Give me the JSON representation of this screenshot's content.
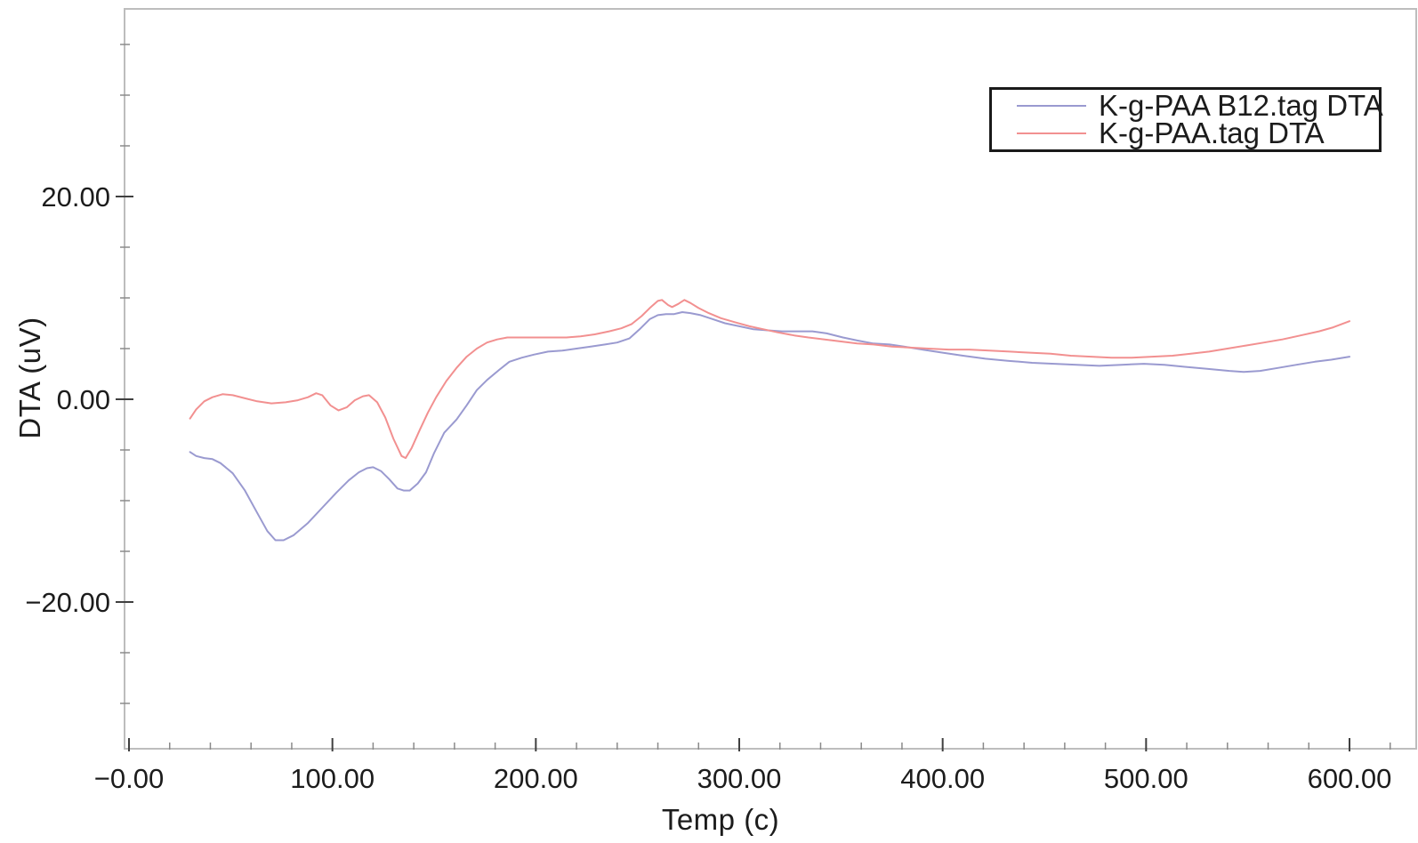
{
  "figure": {
    "background_color": "#ffffff",
    "frame_color": "#bdbdbd",
    "major_tick_color": "#3f3f3f",
    "minor_tick_color": "#8a8a8a",
    "text_color": "#1c1c1c"
  },
  "legend": {
    "items": [
      {
        "label": "K-g-PAA B12.tag DTA",
        "color": "#9a9ad0"
      },
      {
        "label": "K-g-PAA.tag DTA",
        "color": "#f29090"
      }
    ]
  },
  "chart_data": {
    "type": "line",
    "title": "",
    "xlabel": "Temp (c)",
    "ylabel": "DTA (uV)",
    "xlim": [
      -2.2,
      632.8
    ],
    "ylim": [
      -34.5,
      38.5
    ],
    "grid": false,
    "legend_position": "upper right",
    "x_axis": {
      "major_ticks": [
        {
          "value": 0,
          "label": "−0.00"
        },
        {
          "value": 100,
          "label": "100.00"
        },
        {
          "value": 200,
          "label": "200.00"
        },
        {
          "value": 300,
          "label": "300.00"
        },
        {
          "value": 400,
          "label": "400.00"
        },
        {
          "value": 500,
          "label": "500.00"
        },
        {
          "value": 600,
          "label": "600.00"
        }
      ],
      "minor_ticks": [
        20,
        40,
        60,
        80,
        120,
        140,
        160,
        180,
        220,
        240,
        260,
        280,
        320,
        340,
        360,
        380,
        420,
        440,
        460,
        480,
        520,
        540,
        560,
        580,
        620
      ]
    },
    "y_axis": {
      "major_ticks": [
        {
          "value": 20,
          "label": "20.00"
        },
        {
          "value": 0,
          "label": "0.00"
        },
        {
          "value": -20,
          "label": "−20.00"
        }
      ],
      "minor_ticks": [
        35,
        30,
        25,
        15,
        10,
        5,
        -5,
        -10,
        -15,
        -25,
        -30
      ]
    },
    "series": [
      {
        "name": "K-g-PAA B12.tag DTA",
        "color": "#9a9ad0",
        "points": [
          [
            30,
            -5.2
          ],
          [
            33,
            -5.6
          ],
          [
            37,
            -5.8
          ],
          [
            41,
            -5.9
          ],
          [
            45,
            -6.3
          ],
          [
            51,
            -7.3
          ],
          [
            57,
            -9.0
          ],
          [
            63,
            -11.2
          ],
          [
            68,
            -13.0
          ],
          [
            72,
            -13.9
          ],
          [
            76,
            -13.9
          ],
          [
            81,
            -13.4
          ],
          [
            88,
            -12.2
          ],
          [
            95,
            -10.7
          ],
          [
            102,
            -9.2
          ],
          [
            108,
            -8.0
          ],
          [
            113,
            -7.2
          ],
          [
            117,
            -6.8
          ],
          [
            120,
            -6.7
          ],
          [
            124,
            -7.1
          ],
          [
            128,
            -7.9
          ],
          [
            132,
            -8.8
          ],
          [
            135,
            -9.0
          ],
          [
            138,
            -9.0
          ],
          [
            142,
            -8.3
          ],
          [
            146,
            -7.2
          ],
          [
            150,
            -5.3
          ],
          [
            155,
            -3.3
          ],
          [
            161,
            -2.0
          ],
          [
            166,
            -0.6
          ],
          [
            171,
            0.9
          ],
          [
            176,
            1.9
          ],
          [
            182,
            2.9
          ],
          [
            187,
            3.7
          ],
          [
            193,
            4.1
          ],
          [
            199,
            4.4
          ],
          [
            206,
            4.7
          ],
          [
            213,
            4.8
          ],
          [
            220,
            5.0
          ],
          [
            227,
            5.2
          ],
          [
            234,
            5.4
          ],
          [
            240,
            5.6
          ],
          [
            246,
            6.0
          ],
          [
            251,
            6.9
          ],
          [
            256,
            7.9
          ],
          [
            260,
            8.3
          ],
          [
            264,
            8.4
          ],
          [
            268,
            8.4
          ],
          [
            272,
            8.6
          ],
          [
            276,
            8.5
          ],
          [
            281,
            8.3
          ],
          [
            287,
            7.9
          ],
          [
            293,
            7.5
          ],
          [
            300,
            7.2
          ],
          [
            307,
            6.9
          ],
          [
            314,
            6.8
          ],
          [
            321,
            6.7
          ],
          [
            328,
            6.7
          ],
          [
            336,
            6.7
          ],
          [
            343,
            6.5
          ],
          [
            351,
            6.1
          ],
          [
            358,
            5.8
          ],
          [
            366,
            5.5
          ],
          [
            374,
            5.4
          ],
          [
            381,
            5.2
          ],
          [
            390,
            4.9
          ],
          [
            400,
            4.6
          ],
          [
            410,
            4.3
          ],
          [
            421,
            4.0
          ],
          [
            432,
            3.8
          ],
          [
            444,
            3.6
          ],
          [
            455,
            3.5
          ],
          [
            466,
            3.4
          ],
          [
            477,
            3.3
          ],
          [
            488,
            3.4
          ],
          [
            499,
            3.5
          ],
          [
            509,
            3.4
          ],
          [
            519,
            3.2
          ],
          [
            530,
            3.0
          ],
          [
            541,
            2.8
          ],
          [
            548,
            2.7
          ],
          [
            556,
            2.8
          ],
          [
            565,
            3.1
          ],
          [
            574,
            3.4
          ],
          [
            583,
            3.7
          ],
          [
            591,
            3.9
          ],
          [
            600,
            4.2
          ]
        ]
      },
      {
        "name": "K-g-PAA.tag DTA",
        "color": "#f29090",
        "points": [
          [
            30,
            -1.9
          ],
          [
            33,
            -1.0
          ],
          [
            37,
            -0.2
          ],
          [
            41,
            0.2
          ],
          [
            46,
            0.5
          ],
          [
            51,
            0.4
          ],
          [
            57,
            0.1
          ],
          [
            63,
            -0.2
          ],
          [
            70,
            -0.4
          ],
          [
            77,
            -0.3
          ],
          [
            83,
            -0.1
          ],
          [
            88,
            0.2
          ],
          [
            92,
            0.6
          ],
          [
            95,
            0.4
          ],
          [
            99,
            -0.6
          ],
          [
            103,
            -1.1
          ],
          [
            107,
            -0.8
          ],
          [
            111,
            -0.1
          ],
          [
            115,
            0.3
          ],
          [
            118,
            0.4
          ],
          [
            122,
            -0.3
          ],
          [
            126,
            -1.8
          ],
          [
            130,
            -3.9
          ],
          [
            134,
            -5.6
          ],
          [
            136,
            -5.8
          ],
          [
            139,
            -4.8
          ],
          [
            143,
            -3.0
          ],
          [
            147,
            -1.3
          ],
          [
            151,
            0.2
          ],
          [
            156,
            1.8
          ],
          [
            161,
            3.1
          ],
          [
            166,
            4.2
          ],
          [
            171,
            5.0
          ],
          [
            176,
            5.6
          ],
          [
            181,
            5.9
          ],
          [
            186,
            6.1
          ],
          [
            193,
            6.1
          ],
          [
            200,
            6.1
          ],
          [
            208,
            6.1
          ],
          [
            215,
            6.1
          ],
          [
            222,
            6.2
          ],
          [
            229,
            6.4
          ],
          [
            236,
            6.7
          ],
          [
            242,
            7.0
          ],
          [
            247,
            7.4
          ],
          [
            252,
            8.2
          ],
          [
            256,
            9.0
          ],
          [
            260,
            9.7
          ],
          [
            262,
            9.8
          ],
          [
            265,
            9.3
          ],
          [
            267,
            9.1
          ],
          [
            270,
            9.4
          ],
          [
            273,
            9.8
          ],
          [
            276,
            9.5
          ],
          [
            280,
            9.0
          ],
          [
            285,
            8.5
          ],
          [
            291,
            8.0
          ],
          [
            298,
            7.6
          ],
          [
            305,
            7.2
          ],
          [
            312,
            6.9
          ],
          [
            319,
            6.6
          ],
          [
            327,
            6.3
          ],
          [
            334,
            6.1
          ],
          [
            342,
            5.9
          ],
          [
            350,
            5.7
          ],
          [
            358,
            5.5
          ],
          [
            366,
            5.4
          ],
          [
            375,
            5.2
          ],
          [
            384,
            5.1
          ],
          [
            393,
            5.0
          ],
          [
            403,
            4.9
          ],
          [
            413,
            4.9
          ],
          [
            423,
            4.8
          ],
          [
            433,
            4.7
          ],
          [
            443,
            4.6
          ],
          [
            453,
            4.5
          ],
          [
            463,
            4.3
          ],
          [
            473,
            4.2
          ],
          [
            483,
            4.1
          ],
          [
            493,
            4.1
          ],
          [
            503,
            4.2
          ],
          [
            513,
            4.3
          ],
          [
            522,
            4.5
          ],
          [
            531,
            4.7
          ],
          [
            540,
            5.0
          ],
          [
            549,
            5.3
          ],
          [
            558,
            5.6
          ],
          [
            567,
            5.9
          ],
          [
            576,
            6.3
          ],
          [
            585,
            6.7
          ],
          [
            592,
            7.1
          ],
          [
            600,
            7.7
          ]
        ]
      }
    ]
  }
}
